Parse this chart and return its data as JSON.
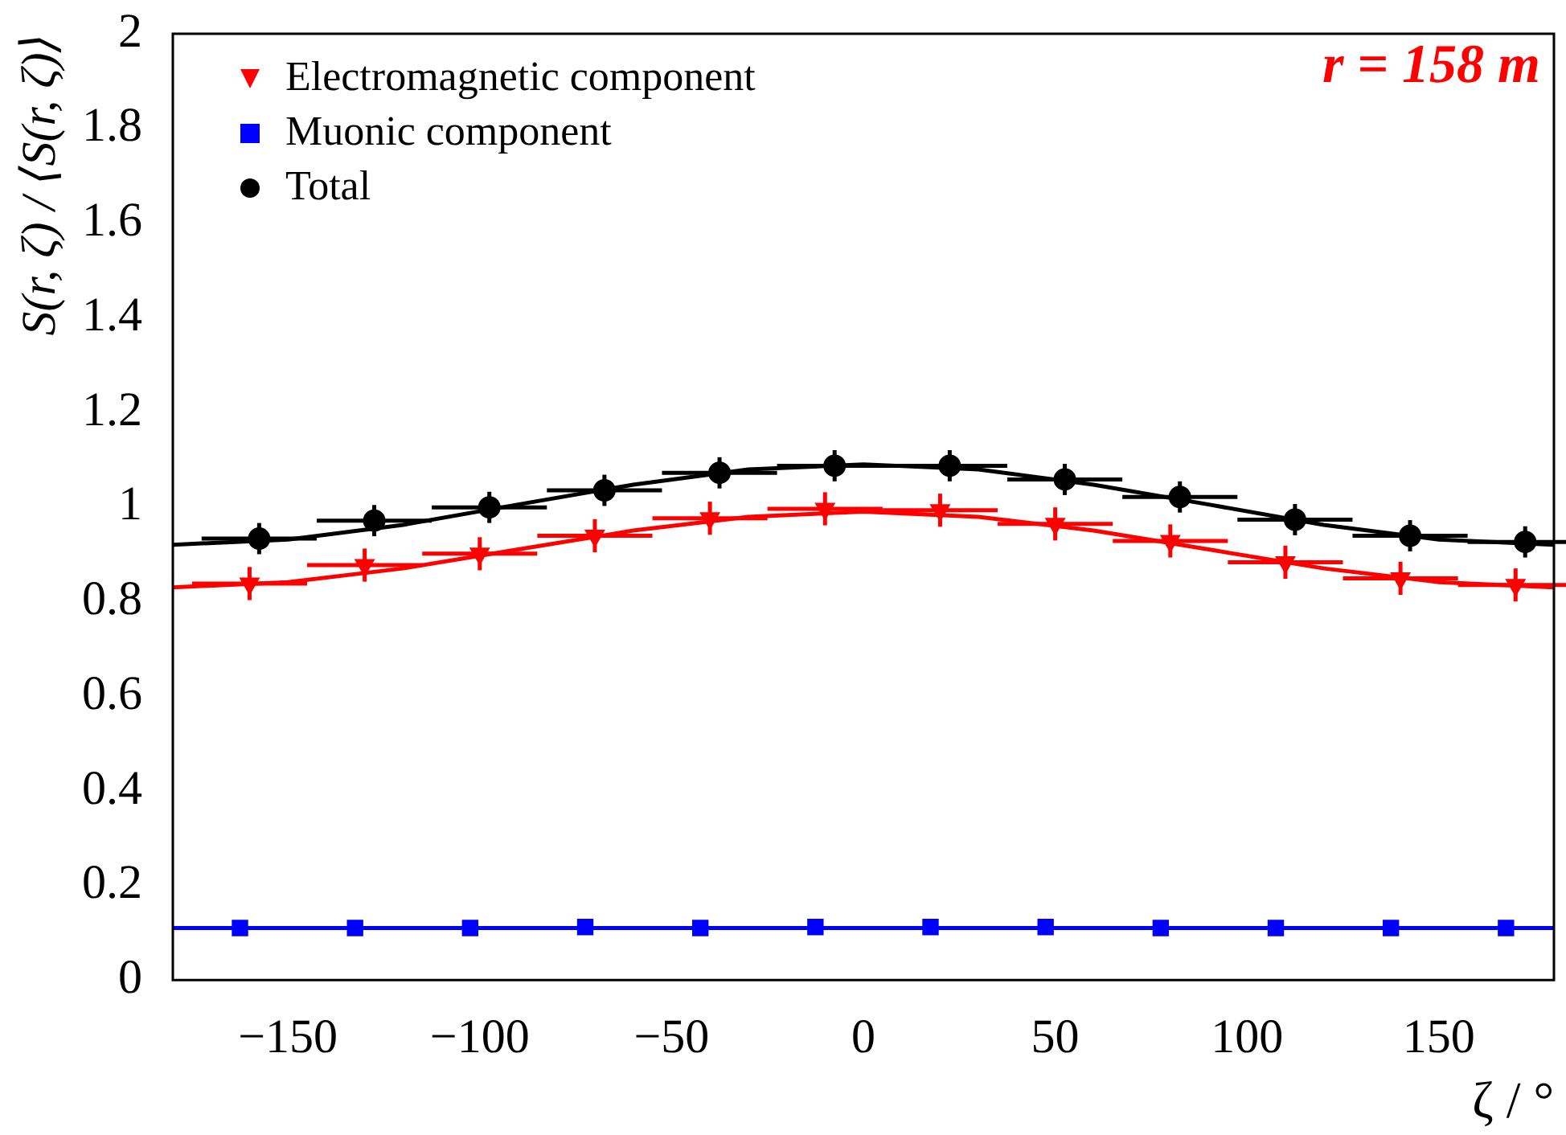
{
  "chart_data": {
    "type": "scatter",
    "xlabel": "ζ / °",
    "ylabel": "S(r, ζ) / ⟨S(r, ζ)⟩",
    "annotations": [
      "r = 158 m"
    ],
    "xlim": [
      -180,
      180
    ],
    "xticks": [
      {
        "value": -150,
        "label": "−150"
      },
      {
        "value": -100,
        "label": "−100"
      },
      {
        "value": -50,
        "label": "−50"
      },
      0,
      50,
      100,
      150
    ],
    "ylim": [
      0,
      2
    ],
    "yticks": [
      0,
      0.2,
      0.4,
      0.6,
      0.8,
      1,
      1.2,
      1.4,
      1.6,
      1.8,
      2
    ],
    "grid": false,
    "legend": "top left",
    "series": [
      {
        "name": "Electromagnetic component",
        "color": "#ff0000",
        "marker": "triangle",
        "x": [
          -160,
          -130,
          -100,
          -70,
          -40,
          -10,
          20,
          50,
          80,
          110,
          140,
          170
        ],
        "values": [
          0.838,
          0.877,
          0.901,
          0.939,
          0.976,
          0.996,
          0.993,
          0.964,
          0.928,
          0.883,
          0.849,
          0.835
        ],
        "errors": [
          0.035,
          0.035,
          0.035,
          0.035,
          0.035,
          0.035,
          0.035,
          0.035,
          0.035,
          0.035,
          0.035,
          0.035
        ],
        "xerrors": [
          15,
          15,
          15,
          15,
          15,
          15,
          15,
          15,
          15,
          15,
          15,
          15
        ]
      },
      {
        "name": "Muonic component",
        "color": "#0000ff",
        "marker": "square",
        "x": [
          -162.5,
          -132.5,
          -102.5,
          -72.5,
          -42.5,
          -12.5,
          17.5,
          47.5,
          77.5,
          107.5,
          137.5,
          167.5
        ],
        "values": [
          0.11,
          0.11,
          0.11,
          0.112,
          0.11,
          0.112,
          0.112,
          0.112,
          0.11,
          0.11,
          0.11,
          0.11
        ]
      },
      {
        "name": "Total",
        "color": "#000000",
        "marker": "circle",
        "x": [
          -157.5,
          -127.5,
          -97.5,
          -67.5,
          -37.5,
          -7.5,
          22.5,
          52.5,
          82.5,
          112.5,
          142.5,
          172.5
        ],
        "values": [
          0.933,
          0.971,
          0.999,
          1.035,
          1.072,
          1.087,
          1.087,
          1.058,
          1.021,
          0.973,
          0.939,
          0.926
        ],
        "errors": [
          0.033,
          0.033,
          0.033,
          0.033,
          0.033,
          0.033,
          0.033,
          0.033,
          0.033,
          0.033,
          0.033,
          0.033
        ],
        "xerrors": [
          15,
          15,
          15,
          15,
          15,
          15,
          15,
          15,
          15,
          15,
          15,
          15
        ]
      },
      {
        "type": "line",
        "color": "#ff0000",
        "x": [
          -180,
          -150,
          -120,
          -90,
          -60,
          -30,
          0,
          30,
          60,
          90,
          120,
          150,
          180
        ],
        "values": [
          0.83,
          0.841,
          0.87,
          0.91,
          0.95,
          0.979,
          0.99,
          0.979,
          0.95,
          0.91,
          0.87,
          0.841,
          0.83
        ]
      },
      {
        "type": "line",
        "color": "#0000ff",
        "x": [
          -180,
          180
        ],
        "values": [
          0.11,
          0.11
        ]
      },
      {
        "type": "line",
        "color": "#000000",
        "x": [
          -180,
          -150,
          -120,
          -90,
          -60,
          -30,
          0,
          30,
          60,
          90,
          120,
          150,
          180
        ],
        "values": [
          0.92,
          0.931,
          0.962,
          1.005,
          1.047,
          1.079,
          1.09,
          1.079,
          1.047,
          1.005,
          0.962,
          0.931,
          0.92
        ]
      }
    ]
  }
}
